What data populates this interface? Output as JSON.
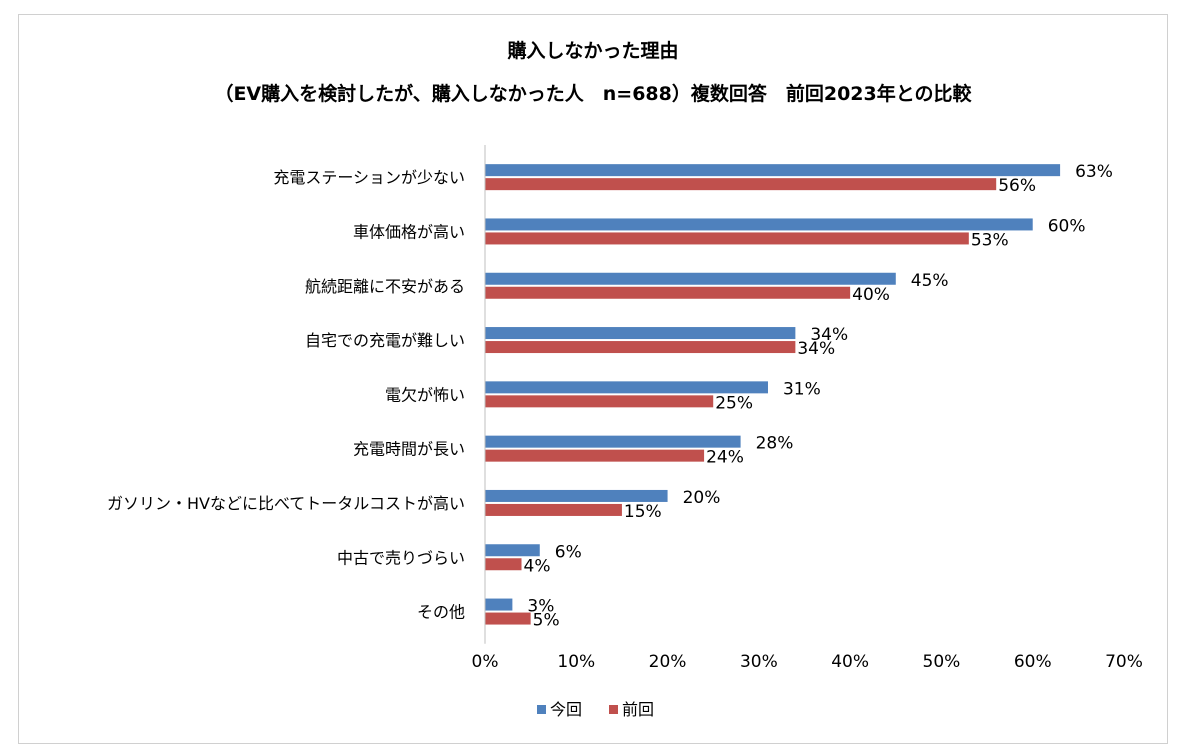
{
  "chart_data": {
    "type": "bar",
    "orientation": "horizontal",
    "title": "購入しなかった理由",
    "subtitle": "（EV購入を検討したが、購入しなかった人　n=688）複数回答　前回2023年との比較",
    "categories": [
      "充電ステーションが少ない",
      "車体価格が高い",
      "航続距離に不安がある",
      "自宅での充電が難しい",
      "電欠が怖い",
      "充電時間が長い",
      "ガソリン・HVなどに比べてトータルコストが高い",
      "中古で売りづらい",
      "その他"
    ],
    "series": [
      {
        "name": "今回",
        "color": "#4f81bd",
        "values": [
          63,
          60,
          45,
          34,
          31,
          28,
          20,
          6,
          3
        ]
      },
      {
        "name": "前回",
        "color": "#c0504d",
        "values": [
          56,
          53,
          40,
          34,
          25,
          24,
          15,
          4,
          5
        ]
      }
    ],
    "xlim": [
      0,
      70
    ],
    "xticks": [
      "0%",
      "10%",
      "20%",
      "30%",
      "40%",
      "50%",
      "60%",
      "70%"
    ],
    "value_suffix": "%",
    "legend_position": "bottom",
    "grid": false
  }
}
